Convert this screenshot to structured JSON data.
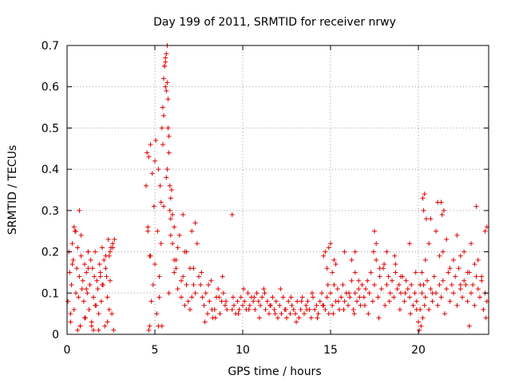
{
  "chart_data": {
    "type": "scatter",
    "title": "Day 199 of 2011, SRMTID for receiver nrwy",
    "xlabel": "GPS time / hours",
    "ylabel": "SRMTID / TECUs",
    "xlim": [
      0,
      24
    ],
    "ylim": [
      0,
      0.7
    ],
    "xticks": [
      0,
      5,
      10,
      15,
      20
    ],
    "yticks": [
      0,
      0.1,
      0.2,
      0.3,
      0.4,
      0.5,
      0.6,
      0.7
    ],
    "xtick_labels": [
      "0",
      "5",
      "10",
      "15",
      "20"
    ],
    "ytick_labels": [
      "0",
      "0.1",
      "0.2",
      "0.3",
      "0.4",
      "0.5",
      "0.6",
      "0.7"
    ],
    "grid": true,
    "marker": "+",
    "color": "#e00000",
    "series": [
      {
        "name": "SRMTID",
        "x": [
          0.05,
          0.1,
          0.15,
          0.2,
          0.25,
          0.3,
          0.35,
          0.4,
          0.45,
          0.5,
          0.55,
          0.6,
          0.65,
          0.7,
          0.75,
          0.8,
          0.85,
          0.9,
          0.95,
          1.0,
          1.05,
          1.1,
          1.15,
          1.2,
          1.25,
          1.3,
          1.35,
          1.4,
          1.45,
          1.5,
          1.55,
          1.6,
          1.65,
          1.7,
          1.75,
          1.8,
          1.85,
          1.9,
          1.95,
          2.0,
          2.05,
          2.1,
          2.15,
          2.2,
          2.25,
          2.3,
          2.35,
          2.4,
          2.45,
          2.5,
          2.55,
          2.6,
          2.65,
          2.7,
          0.2,
          0.4,
          0.6,
          0.8,
          1.0,
          1.2,
          1.4,
          1.6,
          1.8,
          2.0,
          2.2,
          2.4,
          0.3,
          0.7,
          0.75,
          1.1,
          1.5,
          1.9,
          2.3,
          2.45,
          4.5,
          4.55,
          4.6,
          4.65,
          4.7,
          4.75,
          4.8,
          4.85,
          4.9,
          4.95,
          5.0,
          5.05,
          5.1,
          5.15,
          5.2,
          5.25,
          5.3,
          5.35,
          5.4,
          5.45,
          5.5,
          5.55,
          5.6,
          5.65,
          5.7,
          5.75,
          5.8,
          5.85,
          5.9,
          5.95,
          6.0,
          6.1,
          6.2,
          6.3,
          6.4,
          6.5,
          6.6,
          6.7,
          6.8,
          6.9,
          7.0,
          7.1,
          7.2,
          7.3,
          7.4,
          7.5,
          4.6,
          4.7,
          5.0,
          5.2,
          5.4,
          5.5,
          5.6,
          5.65,
          5.7,
          5.75,
          5.8,
          5.9,
          6.0,
          6.2,
          6.5,
          6.8,
          7.0,
          7.2,
          4.65,
          4.75,
          5.25,
          5.35,
          5.45,
          5.55,
          5.6,
          5.65,
          5.7,
          5.8,
          5.85,
          5.9,
          6.1,
          6.3,
          6.7,
          7.1,
          7.6,
          7.7,
          7.8,
          7.9,
          8.0,
          8.1,
          8.2,
          8.3,
          8.4,
          8.5,
          8.6,
          8.7,
          8.8,
          8.9,
          9.0,
          9.1,
          7.65,
          7.85,
          8.05,
          8.25,
          8.45,
          8.65,
          8.85,
          9.05,
          9.4,
          9.5,
          9.6,
          9.7,
          9.8,
          9.9,
          10.0,
          10.1,
          10.2,
          10.3,
          10.4,
          10.5,
          10.6,
          10.7,
          10.8,
          10.9,
          11.0,
          11.1,
          11.2,
          11.3,
          11.4,
          11.5,
          11.6,
          11.7,
          11.8,
          11.9,
          12.0,
          12.1,
          12.2,
          12.3,
          12.4,
          12.5,
          12.6,
          12.7,
          12.8,
          12.9,
          13.0,
          13.1,
          13.2,
          13.3,
          13.4,
          13.5,
          13.6,
          13.7,
          13.8,
          13.9,
          14.0,
          14.1,
          14.2,
          14.3,
          14.4,
          14.5,
          14.6,
          14.7,
          14.8,
          14.9,
          15.0,
          15.1,
          15.2,
          15.3,
          15.4,
          15.5,
          15.6,
          15.7,
          15.8,
          15.9,
          16.0,
          16.1,
          16.2,
          16.3,
          16.4,
          16.5,
          16.6,
          16.7,
          16.8,
          16.9,
          17.0,
          9.45,
          9.75,
          10.05,
          10.35,
          10.65,
          10.95,
          11.25,
          11.55,
          11.85,
          12.15,
          12.45,
          12.75,
          13.05,
          13.35,
          13.65,
          13.95,
          14.25,
          14.55,
          14.85,
          15.15,
          15.45,
          15.75,
          16.05,
          16.35,
          16.65,
          16.95,
          14.6,
          14.7,
          14.8,
          14.9,
          15.0,
          15.1,
          15.2,
          15.3,
          16.2,
          16.4,
          16.6,
          17.1,
          17.2,
          17.3,
          17.4,
          17.5,
          17.6,
          17.7,
          17.8,
          17.9,
          18.0,
          18.1,
          18.2,
          18.3,
          18.4,
          18.5,
          18.6,
          18.7,
          18.8,
          18.9,
          19.0,
          19.1,
          19.2,
          19.3,
          19.4,
          19.5,
          19.6,
          19.7,
          19.8,
          19.9,
          17.15,
          17.45,
          17.75,
          18.05,
          18.35,
          18.65,
          18.95,
          19.25,
          19.55,
          19.85,
          17.5,
          17.6,
          17.8,
          18.2,
          18.7,
          19.0,
          19.9,
          20.0,
          20.05,
          20.1,
          20.15,
          20.2,
          20.25,
          20.3,
          20.35,
          20.4,
          20.5,
          20.6,
          20.7,
          20.8,
          20.9,
          21.0,
          21.1,
          21.2,
          21.3,
          21.4,
          21.5,
          21.6,
          21.7,
          21.8,
          21.9,
          22.0,
          22.1,
          22.2,
          22.3,
          22.4,
          22.5,
          22.6,
          22.7,
          22.8,
          22.9,
          23.0,
          23.1,
          23.2,
          23.3,
          23.4,
          23.5,
          23.6,
          23.7,
          23.8,
          23.9,
          20.1,
          20.2,
          20.3,
          20.4,
          20.6,
          20.8,
          21.0,
          21.2,
          21.4,
          21.6,
          21.8,
          22.0,
          22.2,
          22.4,
          22.6,
          22.8,
          23.0,
          23.2,
          23.4,
          23.6,
          23.8,
          20.25,
          20.35,
          20.45,
          21.3,
          21.35,
          21.45,
          22.4,
          22.9,
          23.85,
          23.9,
          0.5,
          1.2,
          2.6,
          5.5,
          6.1,
          6.6,
          7.3,
          9.4,
          15.8,
          16.4,
          19.5,
          20.7,
          21.1,
          23.3
        ],
        "y": [
          0.08,
          0.2,
          0.15,
          0.05,
          0.12,
          0.22,
          0.18,
          0.06,
          0.25,
          0.1,
          0.16,
          0.21,
          0.09,
          0.14,
          0.02,
          0.19,
          0.11,
          0.13,
          0.08,
          0.17,
          0.04,
          0.15,
          0.1,
          0.2,
          0.06,
          0.12,
          0.18,
          0.03,
          0.16,
          0.09,
          0.14,
          0.2,
          0.07,
          0.13,
          0.11,
          0.05,
          0.17,
          0.15,
          0.08,
          0.21,
          0.12,
          0.18,
          0.02,
          0.16,
          0.14,
          0.09,
          0.23,
          0.19,
          0.13,
          0.21,
          0.05,
          0.22,
          0.01,
          0.23,
          0.03,
          0.26,
          0.01,
          0.24,
          0.04,
          0.2,
          0.02,
          0.07,
          0.01,
          0.12,
          0.19,
          0.06,
          0.17,
          0.3,
          0.02,
          0.11,
          0.01,
          0.14,
          0.03,
          0.2,
          0.36,
          0.44,
          0.26,
          0.43,
          0.19,
          0.46,
          0.08,
          0.39,
          0.12,
          0.31,
          0.17,
          0.47,
          0.05,
          0.25,
          0.4,
          0.14,
          0.36,
          0.22,
          0.5,
          0.55,
          0.62,
          0.65,
          0.67,
          0.59,
          0.61,
          0.5,
          0.44,
          0.3,
          0.28,
          0.35,
          0.22,
          0.18,
          0.16,
          0.11,
          0.24,
          0.09,
          0.14,
          0.2,
          0.12,
          0.08,
          0.16,
          0.25,
          0.12,
          0.1,
          0.22,
          0.14,
          0.25,
          0.02,
          0.42,
          0.02,
          0.02,
          0.53,
          0.6,
          0.68,
          0.7,
          0.57,
          0.48,
          0.33,
          0.29,
          0.18,
          0.13,
          0.2,
          0.06,
          0.16,
          0.01,
          0.19,
          0.09,
          0.32,
          0.46,
          0.65,
          0.66,
          0.38,
          0.4,
          0.1,
          0.36,
          0.24,
          0.15,
          0.21,
          0.07,
          0.09,
          0.12,
          0.09,
          0.07,
          0.1,
          0.05,
          0.08,
          0.13,
          0.04,
          0.06,
          0.09,
          0.11,
          0.05,
          0.08,
          0.1,
          0.07,
          0.06,
          0.15,
          0.03,
          0.12,
          0.06,
          0.04,
          0.09,
          0.14,
          0.08,
          0.06,
          0.07,
          0.05,
          0.08,
          0.06,
          0.09,
          0.07,
          0.08,
          0.06,
          0.1,
          0.07,
          0.09,
          0.08,
          0.06,
          0.1,
          0.08,
          0.07,
          0.09,
          0.11,
          0.06,
          0.08,
          0.05,
          0.07,
          0.09,
          0.06,
          0.08,
          0.04,
          0.07,
          0.05,
          0.09,
          0.06,
          0.04,
          0.08,
          0.05,
          0.07,
          0.06,
          0.05,
          0.08,
          0.04,
          0.06,
          0.09,
          0.05,
          0.07,
          0.08,
          0.06,
          0.04,
          0.09,
          0.06,
          0.07,
          0.05,
          0.08,
          0.1,
          0.07,
          0.06,
          0.09,
          0.05,
          0.1,
          0.07,
          0.12,
          0.08,
          0.11,
          0.06,
          0.09,
          0.12,
          0.08,
          0.1,
          0.07,
          0.09,
          0.13,
          0.06,
          0.1,
          0.08,
          0.11,
          0.07,
          0.12,
          0.09,
          0.11,
          0.09,
          0.05,
          0.11,
          0.06,
          0.09,
          0.04,
          0.1,
          0.07,
          0.05,
          0.11,
          0.06,
          0.09,
          0.03,
          0.08,
          0.06,
          0.1,
          0.04,
          0.07,
          0.12,
          0.05,
          0.08,
          0.06,
          0.1,
          0.05,
          0.09,
          0.07,
          0.19,
          0.2,
          0.16,
          0.21,
          0.22,
          0.15,
          0.18,
          0.17,
          0.18,
          0.2,
          0.13,
          0.13,
          0.1,
          0.15,
          0.08,
          0.12,
          0.18,
          0.09,
          0.14,
          0.11,
          0.16,
          0.07,
          0.12,
          0.14,
          0.1,
          0.13,
          0.09,
          0.15,
          0.11,
          0.12,
          0.1,
          0.14,
          0.08,
          0.13,
          0.11,
          0.09,
          0.12,
          0.07,
          0.1,
          0.06,
          0.05,
          0.2,
          0.04,
          0.17,
          0.08,
          0.19,
          0.06,
          0.1,
          0.05,
          0.15,
          0.25,
          0.22,
          0.16,
          0.2,
          0.17,
          0.14,
          0.08,
          0.03,
          0.01,
          0.06,
          0.02,
          0.1,
          0.04,
          0.12,
          0.07,
          0.09,
          0.13,
          0.06,
          0.11,
          0.08,
          0.14,
          0.1,
          0.07,
          0.12,
          0.09,
          0.13,
          0.05,
          0.11,
          0.15,
          0.08,
          0.12,
          0.1,
          0.14,
          0.07,
          0.16,
          0.11,
          0.09,
          0.13,
          0.12,
          0.08,
          0.15,
          0.1,
          0.12,
          0.07,
          0.14,
          0.11,
          0.09,
          0.13,
          0.06,
          0.1,
          0.08,
          0.12,
          0.15,
          0.3,
          0.18,
          0.22,
          0.1,
          0.25,
          0.19,
          0.2,
          0.23,
          0.16,
          0.18,
          0.24,
          0.19,
          0.2,
          0.15,
          0.22,
          0.17,
          0.18,
          0.14,
          0.25,
          0.33,
          0.34,
          0.28,
          0.32,
          0.29,
          0.3,
          0.12,
          0.02,
          0.04,
          0.26,
          0.25,
          0.16,
          0.21,
          0.31,
          0.26,
          0.29,
          0.27,
          0.29,
          0.2,
          0.15,
          0.22,
          0.28,
          0.32,
          0.31
        ]
      }
    ]
  }
}
